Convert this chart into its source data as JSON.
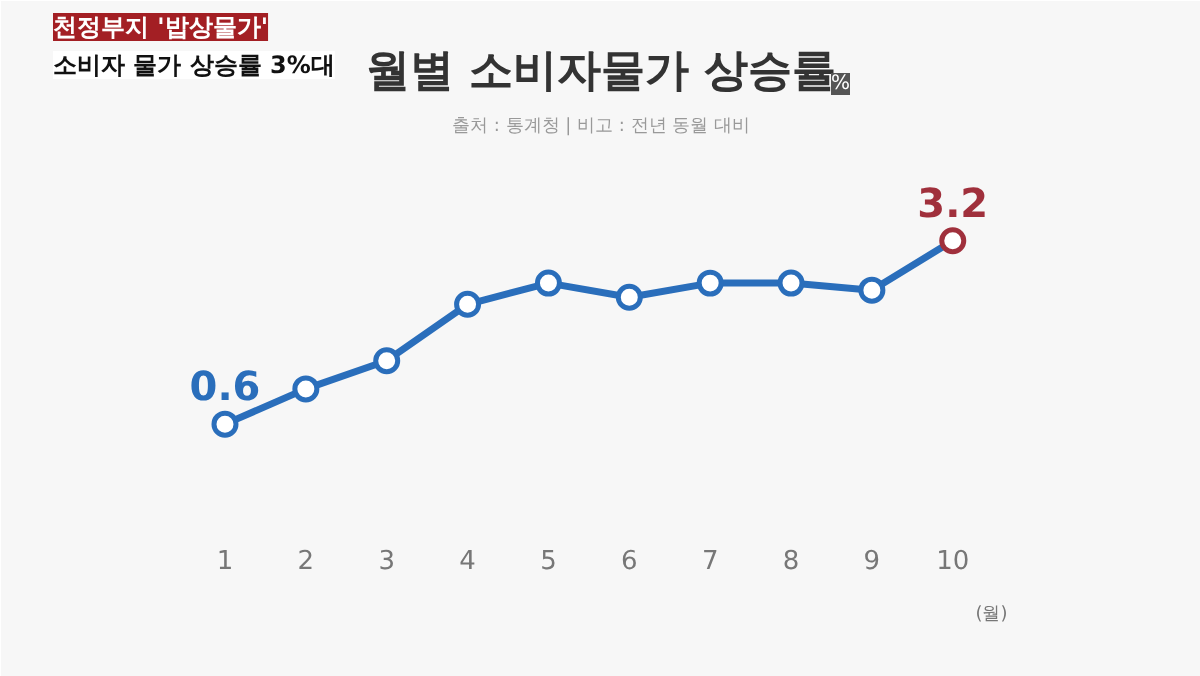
{
  "chart_data": {
    "type": "line",
    "title": "월별 소비자물가 상승률",
    "ylabel": "%",
    "subtitle": "출처 : 통계청 | 비고 : 전년 동월 대비",
    "xlabel": "(월)",
    "annotations": [
      "천정부지 '밥상물가'",
      "소비자 물가 상승률 3%대"
    ],
    "categories": [
      "1",
      "2",
      "3",
      "4",
      "5",
      "6",
      "7",
      "8",
      "9",
      "10"
    ],
    "series": [
      {
        "color": "#2a6ebb",
        "colors": [
          "#2a6ebb",
          "#2a6ebb",
          "#2a6ebb",
          "#2a6ebb",
          "#2a6ebb",
          "#2a6ebb",
          "#2a6ebb",
          "#2a6ebb",
          "#2a6ebb",
          "#a0303c"
        ],
        "values": [
          0.6,
          1.1,
          1.5,
          2.3,
          2.6,
          2.4,
          2.6,
          2.6,
          2.5,
          3.2
        ],
        "value_labels": [
          "0.6",
          null,
          null,
          null,
          null,
          null,
          null,
          null,
          null,
          "3.2"
        ]
      }
    ],
    "ylim": [
      -1,
      6.6
    ],
    "tick_labels": "x",
    "grid": false,
    "marker": "circle",
    "line_style": "solid"
  }
}
